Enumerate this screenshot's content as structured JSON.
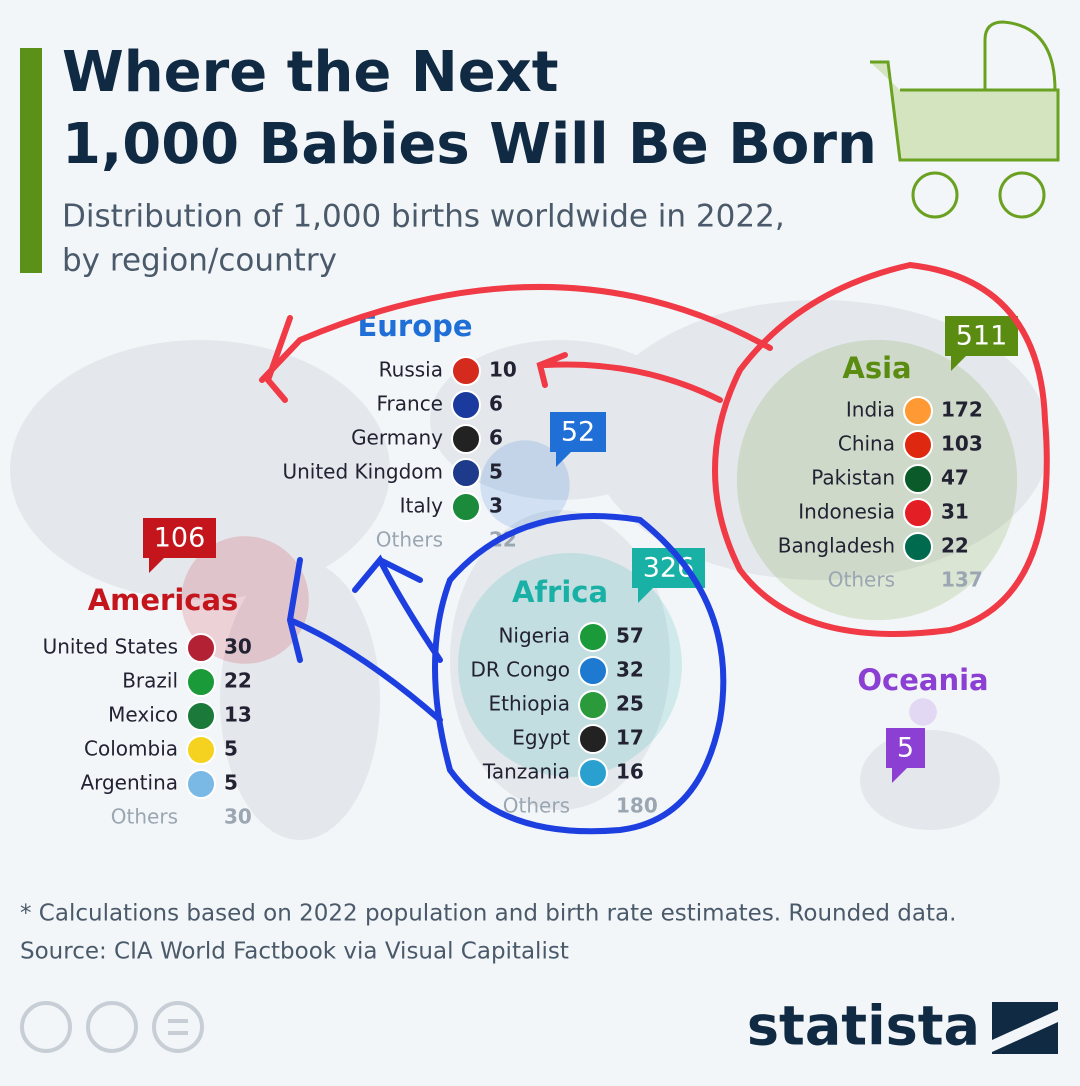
{
  "header": {
    "title_line1": "Where the Next",
    "title_line2": "1,000 Babies Will Be Born",
    "subtitle_line1": "Distribution of 1,000 births worldwide in 2022,",
    "subtitle_line2": "by region/country"
  },
  "regions": [
    {
      "name": "Europe",
      "total": 52,
      "color": "#1f6fd6",
      "countries": [
        {
          "name": "Russia",
          "value": 10
        },
        {
          "name": "France",
          "value": 6
        },
        {
          "name": "Germany",
          "value": 6
        },
        {
          "name": "United Kingdom",
          "value": 5
        },
        {
          "name": "Italy",
          "value": 3
        }
      ],
      "others_label": "Others",
      "others": 22
    },
    {
      "name": "Americas",
      "total": 106,
      "color": "#c4151c",
      "countries": [
        {
          "name": "United States",
          "value": 30
        },
        {
          "name": "Brazil",
          "value": 22
        },
        {
          "name": "Mexico",
          "value": 13
        },
        {
          "name": "Colombia",
          "value": 5
        },
        {
          "name": "Argentina",
          "value": 5
        }
      ],
      "others_label": "Others",
      "others": 30
    },
    {
      "name": "Africa",
      "total": 326,
      "color": "#19b0a6",
      "countries": [
        {
          "name": "Nigeria",
          "value": 57
        },
        {
          "name": "DR Congo",
          "value": 32
        },
        {
          "name": "Ethiopia",
          "value": 25
        },
        {
          "name": "Egypt",
          "value": 17
        },
        {
          "name": "Tanzania",
          "value": 16
        }
      ],
      "others_label": "Others",
      "others": 180
    },
    {
      "name": "Asia",
      "total": 511,
      "color": "#5b8c12",
      "countries": [
        {
          "name": "India",
          "value": 172
        },
        {
          "name": "China",
          "value": 103
        },
        {
          "name": "Pakistan",
          "value": 47
        },
        {
          "name": "Indonesia",
          "value": 31
        },
        {
          "name": "Bangladesh",
          "value": 22
        }
      ],
      "others_label": "Others",
      "others": 137
    },
    {
      "name": "Oceania",
      "total": 5,
      "color": "#8b3fd3",
      "countries": []
    }
  ],
  "footer": {
    "note": "* Calculations based on 2022 population and birth rate estimates. Rounded data.",
    "source": "Source: CIA World Factbook via Visual Capitalist",
    "brand": "statista"
  }
}
